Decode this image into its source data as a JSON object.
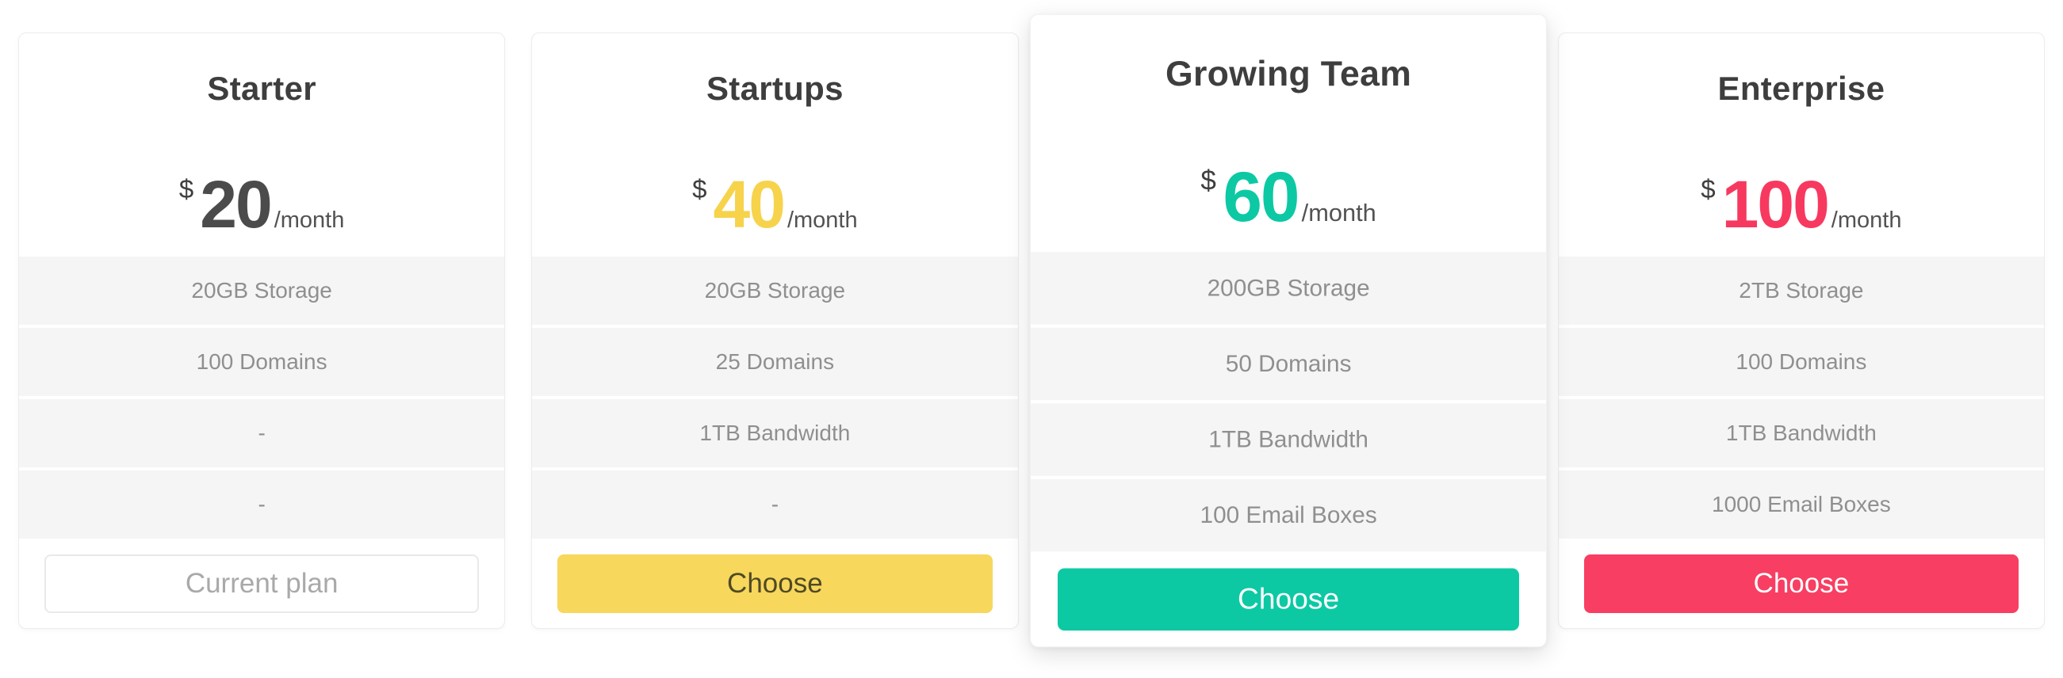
{
  "theme": {
    "page_background": "#ffffff",
    "card_border": "#ececec",
    "feature_row_background": "#f5f5f5",
    "title_color": "#3e3e3e",
    "feature_text_color": "#8f8f8f",
    "currency_color": "#3f3f3f",
    "period_color": "#525252"
  },
  "plans": [
    {
      "name": "Starter",
      "currency": "$",
      "amount": "20",
      "period": "/month",
      "accent": "#4b4b4b",
      "features": [
        "20GB Storage",
        "100 Domains",
        "-",
        "-"
      ],
      "button": {
        "label": "Current plan",
        "style": "outline",
        "bg": "#ffffff",
        "text_color": "#a9a9a9",
        "border_color": "#e9e9e9"
      }
    },
    {
      "name": "Startups",
      "currency": "$",
      "amount": "40",
      "period": "/month",
      "accent": "#f6d34b",
      "features": [
        "20GB Storage",
        "25 Domains",
        "1TB Bandwidth",
        "-"
      ],
      "button": {
        "label": "Choose",
        "style": "solid",
        "bg": "#f7d75c",
        "text_color": "#4f4a25"
      }
    },
    {
      "name": "Growing Team",
      "currency": "$",
      "amount": "60",
      "period": "/month",
      "accent": "#0cc9a4",
      "featured": true,
      "features": [
        "200GB Storage",
        "50 Domains",
        "1TB Bandwidth",
        "100 Email Boxes"
      ],
      "button": {
        "label": "Choose",
        "style": "solid",
        "bg": "#0cc9a4",
        "text_color": "#ffffff"
      }
    },
    {
      "name": "Enterprise",
      "currency": "$",
      "amount": "100",
      "period": "/month",
      "accent": "#f7395f",
      "features": [
        "2TB Storage",
        "100 Domains",
        "1TB Bandwidth",
        "1000 Email Boxes"
      ],
      "button": {
        "label": "Choose",
        "style": "solid",
        "bg": "#f83e62",
        "text_color": "#ffffff"
      }
    }
  ]
}
